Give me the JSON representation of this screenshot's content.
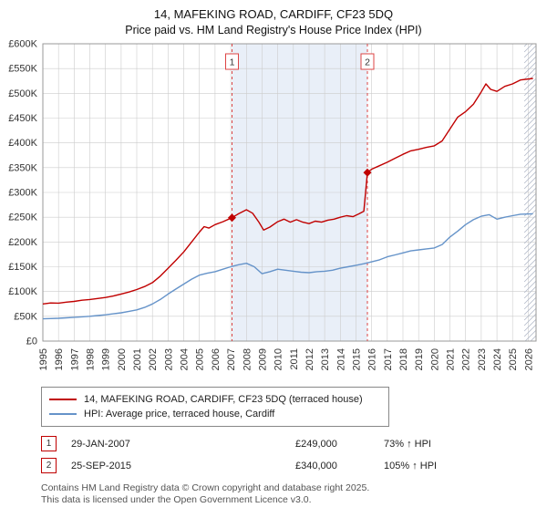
{
  "title": "14, MAFEKING ROAD, CARDIFF, CF23 5DQ",
  "subtitle": "Price paid vs. HM Land Registry's House Price Index (HPI)",
  "chart_data": {
    "type": "line",
    "x_range": [
      1995,
      2026.5
    ],
    "y_range": [
      0,
      600000
    ],
    "x_ticks": [
      1995,
      1996,
      1997,
      1998,
      1999,
      2000,
      2001,
      2002,
      2003,
      2004,
      2005,
      2006,
      2007,
      2008,
      2009,
      2010,
      2011,
      2012,
      2013,
      2014,
      2015,
      2016,
      2017,
      2018,
      2019,
      2020,
      2021,
      2022,
      2023,
      2024,
      2025,
      2026
    ],
    "y_tick_values": [
      0,
      50000,
      100000,
      150000,
      200000,
      250000,
      300000,
      350000,
      400000,
      450000,
      500000,
      550000,
      600000
    ],
    "y_ticks": [
      "£0",
      "£50K",
      "£100K",
      "£150K",
      "£200K",
      "£250K",
      "£300K",
      "£350K",
      "£400K",
      "£450K",
      "£500K",
      "£550K",
      "£600K"
    ],
    "shaded_region": [
      2007.08,
      2015.73
    ],
    "hatch_start": 2025.75,
    "grid": true,
    "legend_position": "bottom",
    "colors": {
      "shade": "#e9eff8",
      "grid": "#cccccc",
      "border": "#999999",
      "dashed": "#dd4444",
      "hatch": "#b0b8c8"
    },
    "sales": [
      {
        "label": "1",
        "date": "29-JAN-2007",
        "x": 2007.08,
        "y": 249000
      },
      {
        "label": "2",
        "date": "25-SEP-2015",
        "x": 2015.73,
        "y": 340000
      }
    ],
    "series": [
      {
        "name": "14, MAFEKING ROAD, CARDIFF, CF23 5DQ (terraced house)",
        "color": "#c00000",
        "points": [
          [
            1995,
            75000
          ],
          [
            1995.5,
            77000
          ],
          [
            1996,
            76500
          ],
          [
            1996.5,
            78500
          ],
          [
            1997,
            80000
          ],
          [
            1997.5,
            82500
          ],
          [
            1998,
            84000
          ],
          [
            1998.5,
            86000
          ],
          [
            1999,
            88000
          ],
          [
            1999.5,
            91000
          ],
          [
            2000,
            95000
          ],
          [
            2000.5,
            99000
          ],
          [
            2001,
            104000
          ],
          [
            2001.5,
            110000
          ],
          [
            2002,
            118000
          ],
          [
            2002.5,
            131000
          ],
          [
            2003,
            147000
          ],
          [
            2003.5,
            163000
          ],
          [
            2004,
            180000
          ],
          [
            2004.5,
            200000
          ],
          [
            2005,
            220000
          ],
          [
            2005.3,
            231000
          ],
          [
            2005.6,
            228000
          ],
          [
            2006,
            235000
          ],
          [
            2006.5,
            241000
          ],
          [
            2007.08,
            249000
          ],
          [
            2007.5,
            257000
          ],
          [
            2008,
            265000
          ],
          [
            2008.4,
            258000
          ],
          [
            2008.8,
            240000
          ],
          [
            2009.1,
            224000
          ],
          [
            2009.5,
            230000
          ],
          [
            2010,
            241000
          ],
          [
            2010.4,
            246000
          ],
          [
            2010.8,
            240000
          ],
          [
            2011.2,
            245000
          ],
          [
            2011.6,
            240000
          ],
          [
            2012,
            237000
          ],
          [
            2012.4,
            242000
          ],
          [
            2012.8,
            240000
          ],
          [
            2013.2,
            244000
          ],
          [
            2013.6,
            246000
          ],
          [
            2014,
            250000
          ],
          [
            2014.4,
            253000
          ],
          [
            2014.8,
            251000
          ],
          [
            2015.2,
            257000
          ],
          [
            2015.5,
            262000
          ],
          [
            2015.73,
            340000
          ],
          [
            2016,
            347000
          ],
          [
            2016.5,
            354000
          ],
          [
            2017,
            361000
          ],
          [
            2017.5,
            369000
          ],
          [
            2018,
            377000
          ],
          [
            2018.5,
            384000
          ],
          [
            2019,
            387000
          ],
          [
            2019.5,
            391000
          ],
          [
            2020,
            394000
          ],
          [
            2020.5,
            404000
          ],
          [
            2021,
            428000
          ],
          [
            2021.5,
            452000
          ],
          [
            2022,
            463000
          ],
          [
            2022.5,
            478000
          ],
          [
            2023,
            503000
          ],
          [
            2023.3,
            519000
          ],
          [
            2023.6,
            508000
          ],
          [
            2024,
            504000
          ],
          [
            2024.5,
            514000
          ],
          [
            2025,
            519000
          ],
          [
            2025.5,
            527000
          ],
          [
            2026.3,
            530000
          ]
        ]
      },
      {
        "name": "HPI: Average price, terraced house, Cardiff",
        "color": "#6593c9",
        "points": [
          [
            1995,
            45000
          ],
          [
            1995.5,
            45500
          ],
          [
            1996,
            46000
          ],
          [
            1996.5,
            47000
          ],
          [
            1997,
            48000
          ],
          [
            1997.5,
            49000
          ],
          [
            1998,
            50000
          ],
          [
            1998.5,
            51500
          ],
          [
            1999,
            53000
          ],
          [
            1999.5,
            55000
          ],
          [
            2000,
            57000
          ],
          [
            2000.5,
            60000
          ],
          [
            2001,
            63000
          ],
          [
            2001.5,
            68000
          ],
          [
            2002,
            75000
          ],
          [
            2002.5,
            84000
          ],
          [
            2003,
            95000
          ],
          [
            2003.5,
            105000
          ],
          [
            2004,
            115000
          ],
          [
            2004.5,
            125000
          ],
          [
            2005,
            133000
          ],
          [
            2005.5,
            137000
          ],
          [
            2006,
            140000
          ],
          [
            2006.5,
            145000
          ],
          [
            2007,
            150000
          ],
          [
            2007.5,
            154000
          ],
          [
            2008,
            157000
          ],
          [
            2008.5,
            150000
          ],
          [
            2009,
            136000
          ],
          [
            2009.5,
            140000
          ],
          [
            2010,
            145000
          ],
          [
            2010.5,
            143000
          ],
          [
            2011,
            141000
          ],
          [
            2011.5,
            139000
          ],
          [
            2012,
            138000
          ],
          [
            2012.5,
            140000
          ],
          [
            2013,
            141000
          ],
          [
            2013.5,
            143000
          ],
          [
            2014,
            147000
          ],
          [
            2014.5,
            150000
          ],
          [
            2015,
            153000
          ],
          [
            2015.5,
            156000
          ],
          [
            2016,
            160000
          ],
          [
            2016.5,
            164000
          ],
          [
            2017,
            170000
          ],
          [
            2017.5,
            174000
          ],
          [
            2018,
            178000
          ],
          [
            2018.5,
            182000
          ],
          [
            2019,
            184000
          ],
          [
            2019.5,
            186000
          ],
          [
            2020,
            188000
          ],
          [
            2020.5,
            195000
          ],
          [
            2021,
            210000
          ],
          [
            2021.5,
            222000
          ],
          [
            2022,
            235000
          ],
          [
            2022.5,
            245000
          ],
          [
            2023,
            252000
          ],
          [
            2023.5,
            255000
          ],
          [
            2024,
            246000
          ],
          [
            2024.5,
            250000
          ],
          [
            2025,
            253000
          ],
          [
            2025.5,
            256000
          ],
          [
            2026.3,
            257000
          ]
        ]
      }
    ]
  },
  "table": {
    "rows": [
      {
        "num": "1",
        "date": "29-JAN-2007",
        "price": "£249,000",
        "hpi": "73% ↑ HPI"
      },
      {
        "num": "2",
        "date": "25-SEP-2015",
        "price": "£340,000",
        "hpi": "105% ↑ HPI"
      }
    ]
  },
  "footer": {
    "line1": "Contains HM Land Registry data © Crown copyright and database right 2025.",
    "line2": "This data is licensed under the Open Government Licence v3.0."
  }
}
